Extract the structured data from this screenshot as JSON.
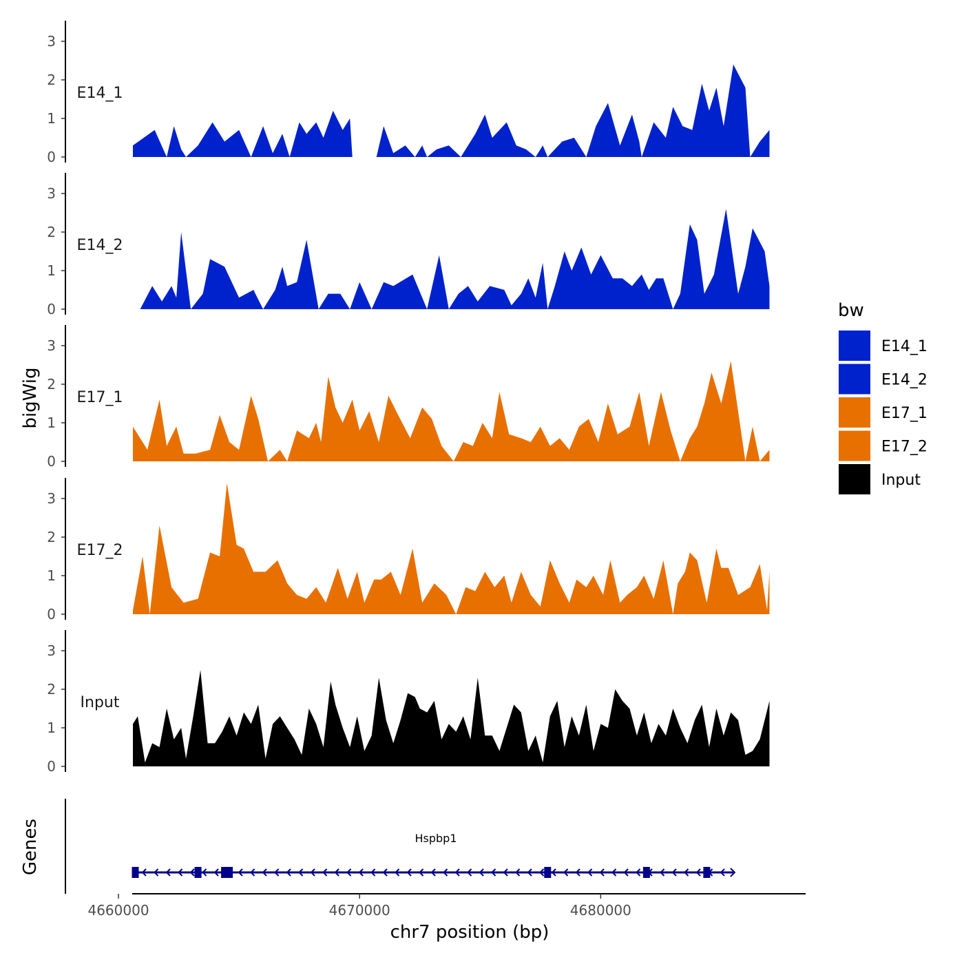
{
  "chart_data": {
    "type": "area",
    "ylabel": "bigWig",
    "xlabel": "chr7 position (bp)",
    "genes_label": "Genes",
    "chromosome": "chr7",
    "xlim": [
      4657800,
      4688500
    ],
    "ylim": [
      0,
      3.5
    ],
    "y_ticks": [
      "0",
      "1",
      "2",
      "3"
    ],
    "x_ticks": [
      4660000,
      4670000,
      4680000
    ],
    "x_tick_labels": [
      "4660000",
      "4670000",
      "4680000"
    ],
    "legend_title": "bw",
    "series": [
      {
        "name": "E14_1",
        "color": "#0022CC",
        "x": [
          4660600,
          4661500,
          4662000,
          4662300,
          4662600,
          4662800,
          4663300,
          4663900,
          4664400,
          4665000,
          4665500,
          4666000,
          4666400,
          4666800,
          4667100,
          4667500,
          4667800,
          4668200,
          4668500,
          4668900,
          4669300,
          4669600,
          4669700,
          4670700,
          4671000,
          4671400,
          4671900,
          4672300,
          4672600,
          4672800,
          4673200,
          4673700,
          4674200,
          4674800,
          4675200,
          4675500,
          4676100,
          4676500,
          4676900,
          4677300,
          4677600,
          4677800,
          4678400,
          4678900,
          4679400,
          4679800,
          4680300,
          4680800,
          4681300,
          4681600,
          4681700,
          4682200,
          4682700,
          4683000,
          4683400,
          4683800,
          4684200,
          4684500,
          4684800,
          4685100,
          4685500,
          4686000,
          4686200,
          4686600,
          4687000
        ],
        "values": [
          0.3,
          0.7,
          0.0,
          0.8,
          0.2,
          0.0,
          0.3,
          0.9,
          0.4,
          0.7,
          0.0,
          0.8,
          0.1,
          0.6,
          0.0,
          0.9,
          0.6,
          0.9,
          0.5,
          1.2,
          0.7,
          1.0,
          0.0,
          0.0,
          0.8,
          0.1,
          0.3,
          0.0,
          0.3,
          0.0,
          0.2,
          0.3,
          0.0,
          0.6,
          1.1,
          0.5,
          0.9,
          0.3,
          0.2,
          0.0,
          0.3,
          0.0,
          0.4,
          0.5,
          0.0,
          0.8,
          1.4,
          0.3,
          1.1,
          0.4,
          0.0,
          0.9,
          0.5,
          1.3,
          0.8,
          0.7,
          1.9,
          1.2,
          1.8,
          0.8,
          2.4,
          1.8,
          0.0,
          0.4,
          0.7
        ]
      },
      {
        "name": "E14_2",
        "color": "#0022CC",
        "x": [
          4660900,
          4661400,
          4661800,
          4662200,
          4662400,
          4662600,
          4663000,
          4663500,
          4663800,
          4664400,
          4665000,
          4665600,
          4666000,
          4666500,
          4666800,
          4667000,
          4667400,
          4667800,
          4668300,
          4668700,
          4669200,
          4669600,
          4670000,
          4670500,
          4671000,
          4671400,
          4672200,
          4672800,
          4673300,
          4673700,
          4674100,
          4674500,
          4674900,
          4675400,
          4676000,
          4676300,
          4676700,
          4677000,
          4677300,
          4677600,
          4677800,
          4678100,
          4678500,
          4678800,
          4679200,
          4679600,
          4680000,
          4680500,
          4680900,
          4681300,
          4681700,
          4682000,
          4682300,
          4682600,
          4683000,
          4683300,
          4683700,
          4684000,
          4684300,
          4684700,
          4685200,
          4685700,
          4686000,
          4686300,
          4686800,
          4687000
        ],
        "values": [
          0.0,
          0.6,
          0.2,
          0.6,
          0.3,
          2.0,
          0.0,
          0.4,
          1.3,
          1.1,
          0.3,
          0.5,
          0.0,
          0.5,
          1.1,
          0.6,
          0.7,
          1.8,
          0.0,
          0.4,
          0.4,
          0.0,
          0.7,
          0.0,
          0.7,
          0.6,
          0.9,
          0.0,
          1.4,
          0.0,
          0.4,
          0.6,
          0.2,
          0.6,
          0.5,
          0.1,
          0.4,
          0.8,
          0.3,
          1.2,
          0.0,
          0.6,
          1.5,
          1.0,
          1.6,
          0.9,
          1.4,
          0.8,
          0.8,
          0.6,
          0.9,
          0.5,
          0.8,
          0.8,
          0.0,
          0.4,
          2.2,
          1.8,
          0.4,
          0.9,
          2.6,
          0.4,
          1.1,
          2.1,
          1.5,
          0.6
        ]
      },
      {
        "name": "E17_1",
        "color": "#E87000",
        "x": [
          4660600,
          4661200,
          4661700,
          4662000,
          4662400,
          4662700,
          4663200,
          4663800,
          4664200,
          4664600,
          4665000,
          4665500,
          4665800,
          4666200,
          4666700,
          4667000,
          4667400,
          4667900,
          4668200,
          4668400,
          4668700,
          4669000,
          4669300,
          4669700,
          4670000,
          4670400,
          4670800,
          4671200,
          4671600,
          4672100,
          4672600,
          4673000,
          4673400,
          4673900,
          4674300,
          4674700,
          4675100,
          4675500,
          4675800,
          4676200,
          4676700,
          4677100,
          4677500,
          4677900,
          4678300,
          4678700,
          4679100,
          4679500,
          4679900,
          4680300,
          4680700,
          4681200,
          4681600,
          4682000,
          4682500,
          4682900,
          4683300,
          4683700,
          4684000,
          4684300,
          4684600,
          4685000,
          4685400,
          4686000,
          4686300,
          4686600,
          4687000
        ],
        "values": [
          0.9,
          0.3,
          1.6,
          0.4,
          0.9,
          0.2,
          0.2,
          0.3,
          1.2,
          0.5,
          0.3,
          1.7,
          1.1,
          0.0,
          0.3,
          0.0,
          0.8,
          0.6,
          1.0,
          0.5,
          2.2,
          1.4,
          1.0,
          1.6,
          0.8,
          1.3,
          0.5,
          1.7,
          1.2,
          0.6,
          1.4,
          1.1,
          0.4,
          0.0,
          0.5,
          0.4,
          1.0,
          0.6,
          1.8,
          0.7,
          0.6,
          0.5,
          0.9,
          0.4,
          0.6,
          0.3,
          0.9,
          1.1,
          0.5,
          1.5,
          0.7,
          0.9,
          1.8,
          0.4,
          1.8,
          0.8,
          0.0,
          0.6,
          0.9,
          1.5,
          2.3,
          1.5,
          2.6,
          0.0,
          0.9,
          0.0,
          0.3
        ]
      },
      {
        "name": "E17_2",
        "color": "#E87000",
        "x": [
          4660600,
          4661000,
          4661300,
          4661700,
          4662200,
          4662700,
          4663300,
          4663800,
          4664200,
          4664500,
          4664900,
          4665200,
          4665600,
          4666100,
          4666600,
          4667000,
          4667400,
          4667800,
          4668200,
          4668600,
          4669100,
          4669500,
          4669900,
          4670200,
          4670600,
          4670900,
          4671300,
          4671700,
          4672200,
          4672600,
          4673100,
          4673600,
          4674000,
          4674400,
          4674800,
          4675200,
          4675600,
          4676000,
          4676300,
          4676700,
          4677100,
          4677500,
          4677900,
          4678300,
          4678700,
          4679000,
          4679400,
          4679700,
          4680100,
          4680400,
          4680800,
          4681100,
          4681500,
          4681800,
          4682200,
          4682600,
          4683000,
          4683200,
          4683500,
          4683700,
          4684000,
          4684400,
          4684800,
          4685000,
          4685300,
          4685700,
          4686200,
          4686600,
          4686900,
          4687000
        ],
        "values": [
          0.1,
          1.5,
          0.0,
          2.3,
          0.7,
          0.3,
          0.4,
          1.6,
          1.5,
          3.4,
          1.8,
          1.7,
          1.1,
          1.1,
          1.4,
          0.8,
          0.5,
          0.4,
          0.7,
          0.3,
          1.2,
          0.4,
          1.1,
          0.3,
          0.9,
          0.9,
          1.1,
          0.5,
          1.7,
          0.3,
          0.8,
          0.5,
          0.0,
          0.7,
          0.6,
          1.1,
          0.7,
          1.0,
          0.3,
          1.1,
          0.5,
          0.2,
          1.4,
          0.8,
          0.3,
          0.9,
          0.7,
          1.0,
          0.5,
          1.4,
          0.3,
          0.5,
          0.7,
          1.0,
          0.4,
          1.4,
          0.0,
          0.8,
          1.1,
          1.6,
          1.4,
          0.3,
          1.7,
          1.2,
          1.2,
          0.5,
          0.7,
          1.3,
          0.1,
          1.1
        ]
      },
      {
        "name": "Input",
        "color": "#000000",
        "x": [
          4660600,
          4660800,
          4661100,
          4661400,
          4661700,
          4662000,
          4662300,
          4662600,
          4662800,
          4663100,
          4663400,
          4663700,
          4664000,
          4664300,
          4664600,
          4664900,
          4665200,
          4665500,
          4665800,
          4666100,
          4666400,
          4666700,
          4667000,
          4667300,
          4667600,
          4667900,
          4668200,
          4668500,
          4668800,
          4669000,
          4669300,
          4669600,
          4669900,
          4670200,
          4670500,
          4670800,
          4671100,
          4671400,
          4671700,
          4672000,
          4672300,
          4672500,
          4672800,
          4673100,
          4673400,
          4673700,
          4674000,
          4674300,
          4674600,
          4674900,
          4675200,
          4675500,
          4675800,
          4676100,
          4676400,
          4676700,
          4677000,
          4677300,
          4677600,
          4677900,
          4678200,
          4678500,
          4678800,
          4679100,
          4679400,
          4679700,
          4680000,
          4680300,
          4680600,
          4680900,
          4681200,
          4681500,
          4681800,
          4682100,
          4682400,
          4682700,
          4683000,
          4683300,
          4683600,
          4683900,
          4684200,
          4684500,
          4684800,
          4685100,
          4685400,
          4685700,
          4686000,
          4686300,
          4686600,
          4687000
        ],
        "values": [
          1.1,
          1.3,
          0.1,
          0.6,
          0.5,
          1.5,
          0.7,
          1.0,
          0.2,
          1.3,
          2.5,
          0.6,
          0.6,
          0.9,
          1.3,
          0.8,
          1.4,
          1.1,
          1.6,
          0.2,
          1.1,
          1.3,
          1.0,
          0.7,
          0.3,
          1.5,
          1.1,
          0.5,
          2.2,
          1.6,
          1.0,
          0.5,
          1.3,
          0.4,
          0.8,
          2.3,
          1.2,
          0.6,
          1.2,
          1.9,
          1.8,
          1.5,
          1.4,
          1.7,
          0.7,
          1.1,
          0.9,
          1.3,
          0.7,
          2.3,
          0.8,
          0.8,
          0.4,
          1.0,
          1.6,
          1.4,
          0.4,
          0.8,
          0.1,
          1.3,
          1.7,
          0.5,
          1.3,
          0.8,
          1.6,
          0.4,
          1.1,
          1.0,
          2.0,
          1.7,
          1.5,
          0.8,
          1.4,
          0.6,
          1.1,
          0.8,
          1.5,
          1.0,
          0.6,
          1.2,
          1.6,
          0.5,
          1.5,
          0.8,
          1.4,
          1.2,
          0.3,
          0.4,
          0.7,
          1.7
        ]
      }
    ],
    "gene": {
      "name": "Hspbp1",
      "strand": "-",
      "start": 4660600,
      "end": 4685500,
      "exons": [
        4660700,
        4663300,
        4664400,
        4664600,
        4677800,
        4681900,
        4684400
      ],
      "color": "#00008B"
    }
  }
}
